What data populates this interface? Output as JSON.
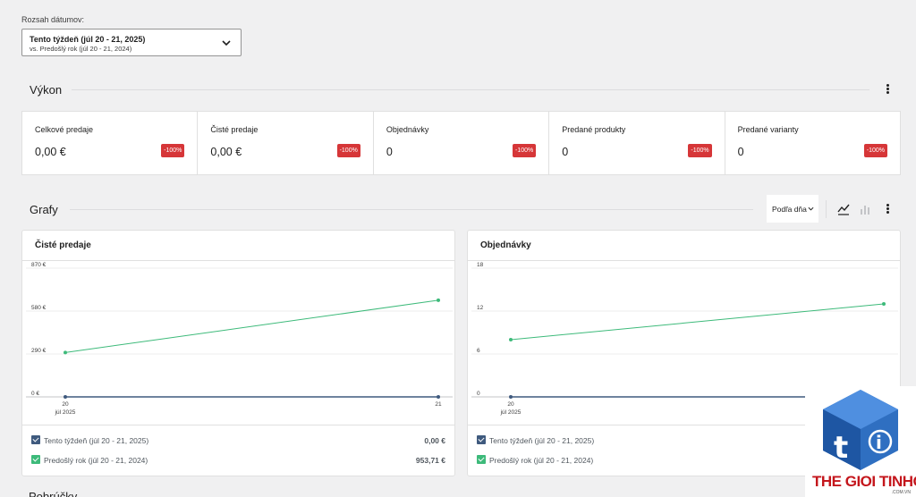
{
  "date_range": {
    "label": "Rozsah dátumov:",
    "primary": "Tento týždeň (júl 20 - 21, 2025)",
    "secondary": "vs. Predošlý rok (júl 20 - 21, 2024)"
  },
  "performance": {
    "title": "Výkon",
    "cards": [
      {
        "label": "Celkové predaje",
        "value": "0,00 €",
        "delta": "-100%"
      },
      {
        "label": "Čisté predaje",
        "value": "0,00 €",
        "delta": "-100%"
      },
      {
        "label": "Objednávky",
        "value": "0",
        "delta": "-100%"
      },
      {
        "label": "Predané produkty",
        "value": "0",
        "delta": "-100%"
      },
      {
        "label": "Predané varianty",
        "value": "0",
        "delta": "-100%"
      }
    ]
  },
  "charts_section": {
    "title": "Grafy",
    "interval": "Podľa dňa"
  },
  "chart_data": [
    {
      "type": "line",
      "title": "Čisté predaje",
      "x": [
        "20",
        "21"
      ],
      "x_sublabel": "júl 2025",
      "yticks": [
        "870 €",
        "580 €",
        "290 €",
        "0 €"
      ],
      "ylim": [
        0,
        870
      ],
      "series": [
        {
          "name": "Tento týždeň (júl 20 - 21, 2025)",
          "values": [
            0,
            0
          ],
          "total": "0,00 €"
        },
        {
          "name": "Predošlý rok (júl 20 - 21, 2024)",
          "values": [
            300,
            653
          ],
          "total": "953,71 €"
        }
      ]
    },
    {
      "type": "line",
      "title": "Objednávky",
      "x": [
        "20",
        "21"
      ],
      "x_sublabel": "júl 2025",
      "yticks": [
        "18",
        "12",
        "6",
        "0"
      ],
      "ylim": [
        0,
        18
      ],
      "series": [
        {
          "name": "Tento týždeň (júl 20 - 21, 2025)",
          "values": [
            0,
            0
          ],
          "total": ""
        },
        {
          "name": "Predošlý rok (júl 20 - 21, 2024)",
          "values": [
            8,
            13
          ],
          "total": ""
        }
      ]
    }
  ],
  "colors": {
    "current": "#3f5a7e",
    "previous": "#3dba7a",
    "delta_bg": "#d63638"
  },
  "logo": {
    "text": "THE GIOI TINHOC",
    "sub": ".COM.VN"
  },
  "next_section": {
    "title": "Pobrúčky"
  }
}
